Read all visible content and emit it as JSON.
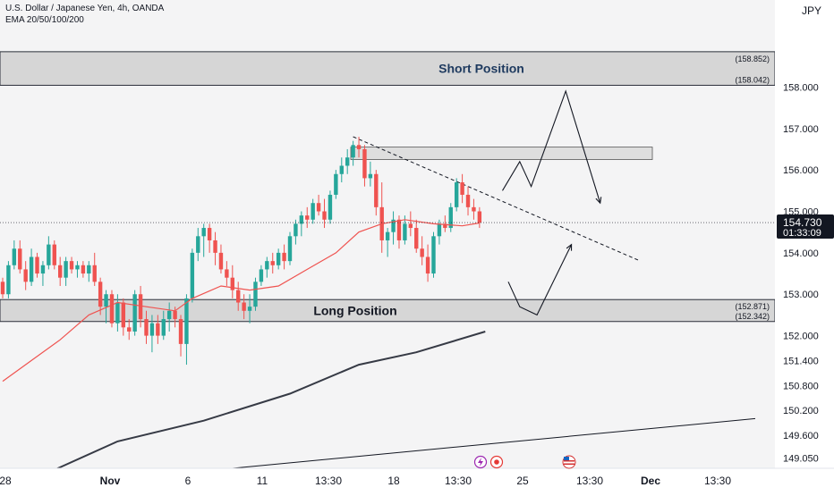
{
  "header": {
    "symbol": "U.S. Dollar / Japanese Yen, 4h, OANDA",
    "indicator": "EMA 20/50/100/200",
    "currency": "JPY"
  },
  "colors": {
    "bull": "#26a69a",
    "bear": "#ef5350",
    "ema_fast": "#ef5350",
    "ema_slow": "#363a45",
    "zone_fill": "#d6d6d6",
    "price_tag": "#131722"
  },
  "icons": [
    "lightning-icon",
    "record-icon",
    "us-flag-icon"
  ],
  "chart_data": {
    "type": "candlestick",
    "ylim": [
      148.8,
      160.1
    ],
    "x_tick_labels": [
      "28",
      "Nov",
      "6",
      "11",
      "13:30",
      "18",
      "13:30",
      "25",
      "13:30",
      "Dec",
      "13:30"
    ],
    "y_tick_labels": [
      "149.050",
      "149.600",
      "150.200",
      "150.800",
      "151.400",
      "152.000",
      "153.000",
      "154.000",
      "155.000",
      "156.000",
      "157.000",
      "158.000"
    ],
    "last_price": "154.730",
    "countdown": "01:33:09",
    "zones": [
      {
        "label": "Short Position",
        "top": 158.852,
        "bottom": 158.042,
        "top_label": "(158.852)",
        "bottom_label": "(158.042)"
      },
      {
        "label": "Long Position",
        "top": 152.871,
        "bottom": 152.342,
        "top_label": "(152.871)",
        "bottom_label": "(152.342)"
      }
    ],
    "resistance_box": {
      "top": 156.55,
      "bottom": 156.25
    },
    "candles": [
      [
        153.3,
        153.4,
        152.9,
        153.0
      ],
      [
        153.0,
        153.8,
        152.9,
        153.7
      ],
      [
        153.7,
        154.3,
        153.6,
        154.1
      ],
      [
        154.1,
        154.3,
        153.5,
        153.6
      ],
      [
        153.6,
        153.8,
        153.1,
        153.3
      ],
      [
        153.3,
        154.1,
        153.2,
        153.9
      ],
      [
        153.9,
        154.0,
        153.4,
        153.5
      ],
      [
        153.5,
        153.8,
        153.2,
        153.7
      ],
      [
        153.7,
        154.4,
        153.6,
        154.2
      ],
      [
        154.2,
        154.3,
        153.6,
        153.7
      ],
      [
        153.7,
        153.9,
        153.2,
        153.4
      ],
      [
        153.4,
        153.9,
        153.2,
        153.8
      ],
      [
        153.8,
        153.9,
        153.5,
        153.6
      ],
      [
        153.6,
        153.8,
        153.4,
        153.7
      ],
      [
        153.7,
        153.8,
        153.4,
        153.5
      ],
      [
        153.5,
        153.8,
        153.3,
        153.7
      ],
      [
        153.7,
        154.0,
        153.2,
        153.3
      ],
      [
        153.3,
        153.4,
        152.5,
        152.7
      ],
      [
        152.7,
        153.1,
        152.3,
        153.0
      ],
      [
        153.0,
        153.1,
        152.2,
        152.3
      ],
      [
        152.3,
        153.0,
        152.1,
        152.8
      ],
      [
        152.8,
        152.9,
        152.0,
        152.2
      ],
      [
        152.2,
        152.4,
        151.9,
        152.1
      ],
      [
        152.1,
        153.1,
        152.0,
        153.0
      ],
      [
        153.0,
        153.2,
        152.2,
        152.4
      ],
      [
        152.4,
        152.6,
        151.8,
        152.0
      ],
      [
        152.0,
        152.5,
        151.6,
        152.3
      ],
      [
        152.3,
        152.5,
        151.8,
        152.0
      ],
      [
        152.0,
        152.6,
        151.9,
        152.4
      ],
      [
        152.4,
        152.8,
        152.1,
        152.6
      ],
      [
        152.6,
        152.7,
        152.2,
        152.4
      ],
      [
        152.4,
        152.5,
        151.5,
        151.8
      ],
      [
        151.8,
        153.0,
        151.3,
        152.9
      ],
      [
        152.9,
        154.1,
        152.8,
        154.0
      ],
      [
        154.0,
        154.6,
        153.8,
        154.4
      ],
      [
        154.4,
        154.7,
        153.9,
        154.6
      ],
      [
        154.6,
        154.7,
        154.0,
        154.3
      ],
      [
        154.3,
        154.5,
        153.7,
        154.0
      ],
      [
        154.0,
        154.2,
        153.5,
        153.6
      ],
      [
        153.6,
        153.8,
        153.2,
        153.4
      ],
      [
        153.4,
        153.7,
        152.9,
        153.1
      ],
      [
        153.1,
        153.3,
        152.6,
        152.8
      ],
      [
        152.8,
        153.0,
        152.4,
        152.6
      ],
      [
        152.6,
        153.0,
        152.3,
        152.7
      ],
      [
        152.7,
        153.4,
        152.6,
        153.3
      ],
      [
        153.3,
        153.7,
        153.2,
        153.6
      ],
      [
        153.6,
        153.9,
        153.4,
        153.8
      ],
      [
        153.8,
        154.0,
        153.5,
        153.7
      ],
      [
        153.7,
        154.1,
        153.6,
        154.0
      ],
      [
        154.0,
        154.2,
        153.6,
        153.8
      ],
      [
        153.8,
        154.5,
        153.7,
        154.4
      ],
      [
        154.4,
        154.8,
        154.2,
        154.7
      ],
      [
        154.7,
        155.0,
        154.4,
        154.9
      ],
      [
        154.9,
        155.1,
        154.6,
        154.8
      ],
      [
        154.8,
        155.3,
        154.7,
        155.2
      ],
      [
        155.2,
        155.4,
        154.9,
        155.0
      ],
      [
        155.0,
        155.3,
        154.6,
        154.8
      ],
      [
        154.8,
        155.5,
        154.7,
        155.4
      ],
      [
        155.4,
        156.0,
        155.3,
        155.9
      ],
      [
        155.9,
        156.3,
        155.7,
        156.1
      ],
      [
        156.1,
        156.5,
        155.9,
        156.3
      ],
      [
        156.3,
        156.7,
        156.1,
        156.6
      ],
      [
        156.6,
        156.8,
        156.3,
        156.5
      ],
      [
        156.5,
        156.6,
        155.6,
        155.8
      ],
      [
        155.8,
        156.2,
        155.6,
        155.9
      ],
      [
        155.9,
        156.0,
        154.9,
        155.1
      ],
      [
        155.1,
        155.7,
        154.0,
        154.3
      ],
      [
        154.3,
        154.6,
        153.9,
        154.5
      ],
      [
        154.5,
        155.0,
        154.2,
        154.8
      ],
      [
        154.8,
        154.9,
        154.1,
        154.3
      ],
      [
        154.3,
        154.9,
        154.2,
        154.7
      ],
      [
        154.7,
        155.0,
        154.4,
        154.6
      ],
      [
        154.6,
        154.8,
        154.0,
        154.1
      ],
      [
        154.1,
        154.4,
        153.7,
        153.9
      ],
      [
        153.9,
        154.2,
        153.3,
        153.5
      ],
      [
        153.5,
        154.5,
        153.4,
        154.4
      ],
      [
        154.4,
        154.8,
        154.2,
        154.7
      ],
      [
        154.7,
        154.9,
        154.5,
        154.6
      ],
      [
        154.6,
        155.2,
        154.5,
        155.1
      ],
      [
        155.1,
        155.8,
        155.0,
        155.7
      ],
      [
        155.7,
        155.9,
        155.2,
        155.4
      ],
      [
        155.4,
        155.6,
        154.9,
        155.1
      ],
      [
        155.1,
        155.3,
        154.8,
        155.0
      ],
      [
        155.0,
        155.1,
        154.6,
        154.73
      ]
    ],
    "ema_fast_line": [
      [
        0,
        150.9
      ],
      [
        5,
        151.4
      ],
      [
        10,
        151.9
      ],
      [
        15,
        152.5
      ],
      [
        20,
        152.8
      ],
      [
        25,
        152.7
      ],
      [
        30,
        152.6
      ],
      [
        33,
        152.9
      ],
      [
        38,
        153.2
      ],
      [
        43,
        153.1
      ],
      [
        48,
        153.2
      ],
      [
        53,
        153.6
      ],
      [
        58,
        154.0
      ],
      [
        62,
        154.5
      ],
      [
        66,
        154.7
      ],
      [
        70,
        154.8
      ],
      [
        75,
        154.7
      ],
      [
        80,
        154.65
      ],
      [
        83,
        154.72
      ]
    ],
    "ema_slow_line": [
      [
        8,
        148.7
      ],
      [
        20,
        149.45
      ],
      [
        35,
        149.95
      ],
      [
        50,
        150.6
      ],
      [
        62,
        151.3
      ],
      [
        72,
        151.6
      ],
      [
        84,
        152.1
      ]
    ],
    "trendline": [
      [
        61,
        156.8
      ],
      [
        111,
        153.8
      ]
    ],
    "support_line": [
      [
        40,
        148.8
      ],
      [
        131,
        150.0
      ]
    ],
    "projection_top": [
      [
        87,
        155.5
      ],
      [
        90,
        156.2
      ],
      [
        92,
        155.6
      ],
      [
        98,
        157.9
      ],
      [
        104,
        155.2
      ]
    ],
    "projection_bottom": [
      [
        88,
        153.3
      ],
      [
        90,
        152.7
      ],
      [
        93,
        152.5
      ],
      [
        99,
        154.2
      ]
    ]
  }
}
